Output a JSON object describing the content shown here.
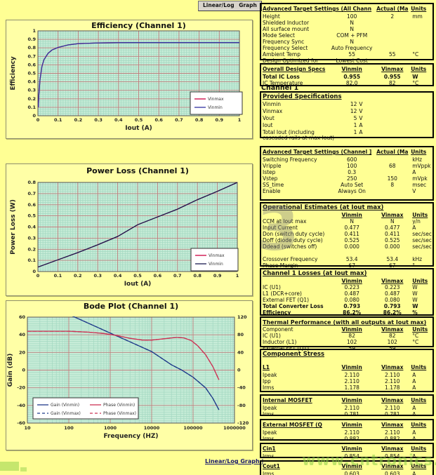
{
  "toolbar": {
    "linear_log": "Linear/Log",
    "graph": "Graph",
    "bottom_link": "Linear/Log  Graph |"
  },
  "watermarks": {
    "number": "3",
    "site": "www.cntronics.com"
  },
  "cols": {
    "vinmin": "Vinmin",
    "vinmax": "Vinmax",
    "units": "Units"
  },
  "tables": {
    "t1": {
      "title": "Advanced Target Settings  (All Chann",
      "h2": "Actual (Ma",
      "h3": "Units",
      "rows": [
        [
          "Height",
          "100",
          "2",
          "mm"
        ],
        [
          "Shielded Inductor",
          "N",
          "",
          ""
        ],
        [
          "All surface mount",
          "N",
          "",
          ""
        ],
        [
          "Mode Select",
          "COM + PFM",
          "",
          ""
        ],
        [
          "Frequency Sync",
          "N",
          "",
          ""
        ],
        [
          "Frequency Select",
          "Auto Frequency",
          "",
          ""
        ],
        [
          "Ambient Temp",
          "55",
          "55",
          "°C"
        ],
        [
          "Design Optimized for",
          "Lowest Cost",
          "",
          ""
        ]
      ]
    },
    "t2": {
      "title": "Overall Design Specs",
      "rows": [
        [
          "Total IC Loss",
          "0.955",
          "0.955",
          "W",
          1
        ],
        [
          "IC Temperature",
          "82.0",
          "82",
          "°C"
        ]
      ]
    },
    "channel_heading": "Channel 1",
    "t3": {
      "title": "Provided Specifications",
      "rows": [
        [
          "Vinmin",
          "12",
          "V"
        ],
        [
          "Vinmax",
          "12",
          "V"
        ],
        [
          "Vout",
          "5",
          "V"
        ],
        [
          "Iout",
          "1",
          "A"
        ],
        [
          "Total Iout (including cascaded rails at max Iout)",
          "1",
          "A"
        ]
      ]
    },
    "t4": {
      "title": "Advanced Target Settings  (Channel ]",
      "h2": "Actual (Ma",
      "h3": "Units",
      "rows": [
        [
          "Switching Frequency",
          "600",
          "",
          "kHz"
        ],
        [
          "Vripple",
          "100",
          "68",
          "mVppk"
        ],
        [
          "Istep",
          "0.3",
          "",
          "A"
        ],
        [
          "Vstep",
          "250",
          "150",
          "mVpk"
        ],
        [
          "SS_time",
          "Auto Set",
          "8",
          "msec"
        ],
        [
          "Enable",
          "Always On",
          "",
          "V"
        ]
      ]
    },
    "t5": {
      "title": "Operational Estimates (at Iout max)",
      "rows": [
        [
          "CCM at Iout max",
          "N",
          "N",
          "y/n"
        ],
        [
          "Input Current",
          "0.477",
          "0.477",
          "A"
        ],
        [
          "Don (switch duty cycle)",
          "0.411",
          "0.411",
          "sec/sec"
        ],
        [
          "Doff (diode duty cycle)",
          "0.525",
          "0.525",
          "sec/sec"
        ],
        [
          "Ddead (switches off)",
          "0.000",
          "0.000",
          "sec/sec"
        ],
        [
          "",
          "",
          "",
          ""
        ],
        [
          "Crossover Frequency",
          "53.4",
          "53.4",
          "kHz"
        ],
        [
          "Phase Margin",
          "67",
          "67",
          "°"
        ]
      ]
    },
    "t6": {
      "title": "Channel 1 Losses (at Iout max)",
      "rows": [
        [
          "IC (U1)",
          "0.223",
          "0.223",
          "W"
        ],
        [
          "L1 (DCR+core)",
          "0.487",
          "0.487",
          "W"
        ],
        [
          "External FET (Q1)",
          "0.080",
          "0.080",
          "W"
        ],
        [
          "Total Converter Loss",
          "0.793",
          "0.793",
          "W",
          1
        ],
        [
          "Efficiency",
          "86.2%",
          "86.2%",
          "%",
          1
        ]
      ]
    },
    "t7": {
      "title": "Thermal Performance (with all outputs at Iout max)",
      "component_hdr": "Component",
      "rows": [
        [
          "IC (U1)",
          "82",
          "82",
          "°C"
        ],
        [
          "Inductor (L1)",
          "102",
          "102",
          "°C"
        ],
        [
          "External FET (Q1)",
          "59",
          "59",
          ""
        ]
      ]
    },
    "t8": {
      "title": "Component Stress",
      "sub": "L1",
      "rows": [
        [
          "Ipeak",
          "2.110",
          "2.110",
          "A"
        ],
        [
          "Ipp",
          "2.110",
          "2.110",
          "A"
        ],
        [
          "Irms",
          "1.178",
          "1.178",
          "A"
        ]
      ]
    },
    "t9": {
      "title": "Internal MOSFET",
      "rows": [
        [
          "Ipeak",
          "2.110",
          "2.110",
          "A"
        ],
        [
          "Irms",
          "0.781",
          "0.781",
          "A"
        ]
      ]
    },
    "t10": {
      "title": "External MOSFET (Q",
      "rows": [
        [
          "Ipeak",
          "2.110",
          "2.110",
          "A"
        ],
        [
          "Irms",
          "0.882",
          "0.882",
          "A"
        ]
      ]
    },
    "t11": {
      "title": "Cin1",
      "rows": [
        [
          "Irms",
          "0.854",
          "0.854",
          "A"
        ]
      ]
    },
    "t12": {
      "title": "Cout1",
      "rows": [
        [
          "Irms",
          "0.603",
          "0.603",
          "A"
        ]
      ]
    }
  },
  "chart_data": [
    {
      "type": "line",
      "title": "Efficiency  (Channel 1)",
      "xlabel": "Iout (A)",
      "ylabel": "Efficiency",
      "xscale": "linear",
      "xlim": [
        0,
        1
      ],
      "ylim": [
        0,
        1
      ],
      "xticks": [
        0,
        0.1,
        0.2,
        0.3,
        0.4,
        0.5,
        0.6,
        0.7,
        0.8,
        0.9,
        1
      ],
      "xtick_labels": [
        "0",
        "0.1",
        "0.2",
        "0.3",
        "0.4",
        "0.5",
        "0.6",
        "0.7",
        "0.8",
        "0.9",
        "1"
      ],
      "yticks": [
        0,
        0.1,
        0.2,
        0.3,
        0.4,
        0.5,
        0.6,
        0.7,
        0.8,
        0.9,
        1
      ],
      "ytick_labels": [
        "0",
        "0.1",
        "0.2",
        "0.3",
        "0.4",
        "0.5",
        "0.6",
        "0.7",
        "0.8",
        "0.9",
        "1"
      ],
      "plot_bg": "#c6ecd7",
      "grid": true,
      "x_minor": 80,
      "y_minor": 40,
      "legend": {
        "position": "right-middle",
        "entries": [
          {
            "label": "Vinmax",
            "color": "#cc0040"
          },
          {
            "label": "Vinmin",
            "color": "#3333a0"
          }
        ]
      },
      "series": [
        {
          "name": "Vinmax",
          "color": "#cc0040",
          "x": [
            0.002,
            0.005,
            0.01,
            0.02,
            0.03,
            0.05,
            0.07,
            0.1,
            0.15,
            0.2,
            0.3,
            0.4,
            0.5,
            0.6,
            0.7,
            0.8,
            0.9,
            1
          ],
          "y": [
            0.1,
            0.25,
            0.42,
            0.58,
            0.66,
            0.735,
            0.775,
            0.805,
            0.835,
            0.85,
            0.858,
            0.861,
            0.862,
            0.862,
            0.862,
            0.862,
            0.862,
            0.862
          ]
        },
        {
          "name": "Vinmin",
          "color": "#3333a0",
          "x": [
            0.002,
            0.005,
            0.01,
            0.02,
            0.03,
            0.05,
            0.07,
            0.1,
            0.15,
            0.2,
            0.3,
            0.4,
            0.5,
            0.6,
            0.7,
            0.8,
            0.9,
            1
          ],
          "y": [
            0.1,
            0.25,
            0.42,
            0.58,
            0.66,
            0.735,
            0.775,
            0.805,
            0.835,
            0.85,
            0.858,
            0.861,
            0.862,
            0.862,
            0.862,
            0.862,
            0.862,
            0.862
          ]
        }
      ]
    },
    {
      "type": "line",
      "title": "Power Loss (Channel 1)",
      "xlabel": "Iout (A)",
      "ylabel": "Power Loss (W)",
      "xscale": "linear",
      "xlim": [
        0,
        1
      ],
      "ylim": [
        0,
        0.8
      ],
      "xticks": [
        0,
        0.1,
        0.2,
        0.3,
        0.4,
        0.5,
        0.6,
        0.7,
        0.8,
        0.9,
        1
      ],
      "xtick_labels": [
        "0",
        "0.1",
        "0.2",
        "0.3",
        "0.4",
        "0.5",
        "0.6",
        "0.7",
        "0.8",
        "0.9",
        "1"
      ],
      "yticks": [
        0,
        0.1,
        0.2,
        0.3,
        0.4,
        0.5,
        0.6,
        0.7,
        0.8
      ],
      "ytick_labels": [
        "0",
        "0.1",
        "0.2",
        "0.3",
        "0.4",
        "0.5",
        "0.6",
        "0.7",
        "0.8"
      ],
      "plot_bg": "#c6ecd7",
      "grid": true,
      "x_minor": 80,
      "y_minor": 40,
      "legend": {
        "position": "right-bottom",
        "entries": [
          {
            "label": "Vinmax",
            "color": "#cc0040"
          },
          {
            "label": "Vinmin",
            "color": "#1a1a50"
          }
        ]
      },
      "series": [
        {
          "name": "Vinmax",
          "color": "#cc0040",
          "x": [
            0,
            0.1,
            0.2,
            0.3,
            0.4,
            0.5,
            0.6,
            0.7,
            0.8,
            0.9,
            1
          ],
          "y": [
            0.04,
            0.105,
            0.17,
            0.24,
            0.315,
            0.42,
            0.49,
            0.56,
            0.645,
            0.72,
            0.8
          ]
        },
        {
          "name": "Vinmin",
          "color": "#1a1a50",
          "x": [
            0,
            0.1,
            0.2,
            0.3,
            0.4,
            0.5,
            0.6,
            0.7,
            0.8,
            0.9,
            1
          ],
          "y": [
            0.04,
            0.105,
            0.17,
            0.24,
            0.315,
            0.42,
            0.49,
            0.56,
            0.645,
            0.72,
            0.8
          ]
        }
      ]
    },
    {
      "type": "line",
      "title": "Bode Plot (Channel 1)",
      "xlabel": "Frequency (HZ)",
      "ylabel": "Gain (dB)",
      "y2label": "",
      "xscale": "log",
      "xlim": [
        10,
        1000000
      ],
      "ylim": [
        -60,
        60
      ],
      "y2lim": [
        -120,
        120
      ],
      "xticks": [
        10,
        100,
        1000,
        10000,
        100000,
        1000000
      ],
      "xtick_labels": [
        "10",
        "100",
        "1000",
        "10000",
        "100000",
        "1000000"
      ],
      "yticks": [
        -60,
        -40,
        -20,
        0,
        20,
        40,
        60
      ],
      "ytick_labels": [
        "-60",
        "-40",
        "-20",
        "0",
        "20",
        "40",
        "60"
      ],
      "y2ticks": [
        -120,
        -80,
        -40,
        0,
        40,
        80,
        120
      ],
      "y2tick_labels": [
        "-120",
        "-80",
        "-40",
        "0",
        "40",
        "80",
        "120"
      ],
      "plot_bg": "#c6ecd7",
      "grid": true,
      "y_minor": 48,
      "legend": {
        "position": "left-bottom",
        "entries": [
          {
            "label": "Gain (Vinmin)",
            "color": "#1f3a8a"
          },
          {
            "label": "Gain (Vinmax)",
            "color": "#1f3a8a",
            "dash": 1
          },
          {
            "label": "Phase (Vinmin)",
            "color": "#cc3355"
          },
          {
            "label": "Phase (Vinmax)",
            "color": "#cc3355",
            "dash": 1
          }
        ]
      },
      "series": [
        {
          "name": "Gain (Vinmax)",
          "color": "#1f3a8a",
          "dash": 1,
          "axis": "left",
          "x": [
            10,
            100,
            300,
            1000,
            3000,
            10000,
            30000,
            53400,
            100000,
            200000,
            300000,
            420000
          ],
          "y": [
            84,
            63,
            53,
            42,
            32,
            21,
            6,
            0,
            -8,
            -20,
            -32,
            -45
          ]
        },
        {
          "name": "Gain (Vinmin)",
          "color": "#1f3a8a",
          "axis": "left",
          "x": [
            10,
            100,
            300,
            1000,
            3000,
            10000,
            30000,
            53400,
            100000,
            200000,
            300000,
            420000
          ],
          "y": [
            84,
            63,
            53,
            42,
            32,
            21,
            6,
            0,
            -8,
            -20,
            -32,
            -45
          ]
        },
        {
          "name": "Phase (Vinmax)",
          "color": "#cc3355",
          "dash": 1,
          "axis": "right",
          "x": [
            10,
            100,
            300,
            700,
            1500,
            3000,
            6000,
            10000,
            20000,
            40000,
            60000,
            90000,
            130000,
            200000,
            300000,
            420000
          ],
          "y": [
            88,
            88,
            86,
            83,
            78,
            72,
            68,
            68,
            71,
            74,
            73,
            67,
            55,
            35,
            8,
            -22
          ]
        },
        {
          "name": "Phase (Vinmin)",
          "color": "#cc3355",
          "axis": "right",
          "x": [
            10,
            100,
            300,
            700,
            1500,
            3000,
            6000,
            10000,
            20000,
            40000,
            60000,
            90000,
            130000,
            200000,
            300000,
            420000
          ],
          "y": [
            88,
            88,
            86,
            83,
            78,
            72,
            68,
            68,
            71,
            74,
            73,
            67,
            55,
            35,
            8,
            -22
          ]
        }
      ]
    }
  ]
}
